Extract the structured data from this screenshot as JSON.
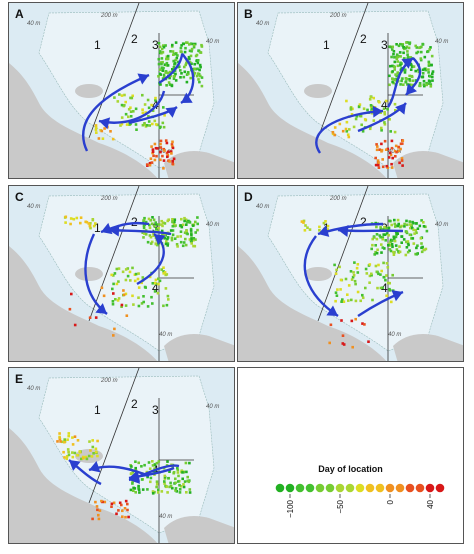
{
  "panels": [
    {
      "letter": "A"
    },
    {
      "letter": "B"
    },
    {
      "letter": "C"
    },
    {
      "letter": "D"
    },
    {
      "letter": "E"
    }
  ],
  "zone_labels": [
    "1",
    "2",
    "3",
    "4"
  ],
  "depth_labels": [
    "40 m",
    "200 m",
    "40 m",
    "40 m"
  ],
  "legend": {
    "title": "Day of location",
    "ticks": [
      "−100",
      "−50",
      "0",
      "40"
    ],
    "tick_values": [
      -100,
      -50,
      0,
      40
    ],
    "min": -110,
    "max": 50,
    "colors": [
      "#22b022",
      "#44c030",
      "#77cc33",
      "#aad633",
      "#dddd22",
      "#f0c020",
      "#f09020",
      "#e85020",
      "#d81818"
    ]
  },
  "colors": {
    "land": "#c9c9c9",
    "water": "#dcebf3",
    "shelf": "#eaf3f8",
    "arrow": "#2a3fcf",
    "line": "#333333"
  }
}
